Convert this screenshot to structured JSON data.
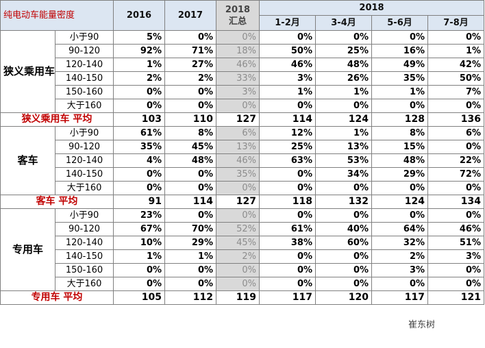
{
  "header": {
    "title": "纯电动车能量密度",
    "years": [
      "2016",
      "2017"
    ],
    "summary": [
      "2018",
      "汇总"
    ],
    "period_year": "2018",
    "periods": [
      "1-2月",
      "3-4月",
      "5-6月",
      "7-8月"
    ]
  },
  "groups": [
    {
      "name": "狭义乘用车",
      "rows": [
        {
          "label": "小于90",
          "values": [
            "5%",
            "0%",
            "0%",
            "0%",
            "0%",
            "0%",
            "0%"
          ]
        },
        {
          "label": "90-120",
          "values": [
            "92%",
            "71%",
            "18%",
            "50%",
            "25%",
            "16%",
            "1%"
          ]
        },
        {
          "label": "120-140",
          "values": [
            "1%",
            "27%",
            "46%",
            "46%",
            "48%",
            "49%",
            "42%"
          ]
        },
        {
          "label": "140-150",
          "values": [
            "2%",
            "2%",
            "33%",
            "3%",
            "26%",
            "35%",
            "50%"
          ]
        },
        {
          "label": "150-160",
          "values": [
            "0%",
            "0%",
            "3%",
            "1%",
            "1%",
            "1%",
            "7%"
          ]
        },
        {
          "label": "大于160",
          "values": [
            "0%",
            "0%",
            "0%",
            "0%",
            "0%",
            "0%",
            "0%"
          ]
        }
      ],
      "average": {
        "label": "狭义乘用车 平均",
        "values": [
          103,
          110,
          127,
          114,
          124,
          128,
          136
        ]
      }
    },
    {
      "name": "客车",
      "rows": [
        {
          "label": "小于90",
          "values": [
            "61%",
            "8%",
            "6%",
            "12%",
            "1%",
            "8%",
            "6%"
          ]
        },
        {
          "label": "90-120",
          "values": [
            "35%",
            "45%",
            "13%",
            "25%",
            "13%",
            "15%",
            "0%"
          ]
        },
        {
          "label": "120-140",
          "values": [
            "4%",
            "48%",
            "46%",
            "63%",
            "53%",
            "48%",
            "22%"
          ]
        },
        {
          "label": "140-150",
          "values": [
            "0%",
            "0%",
            "35%",
            "0%",
            "34%",
            "29%",
            "72%"
          ]
        },
        {
          "label": "大于160",
          "values": [
            "0%",
            "0%",
            "0%",
            "0%",
            "0%",
            "0%",
            "0%"
          ]
        }
      ],
      "average": {
        "label": "客车 平均",
        "values": [
          91,
          114,
          127,
          118,
          132,
          124,
          134
        ]
      }
    },
    {
      "name": "专用车",
      "rows": [
        {
          "label": "小于90",
          "values": [
            "23%",
            "0%",
            "0%",
            "0%",
            "0%",
            "0%",
            "0%"
          ]
        },
        {
          "label": "90-120",
          "values": [
            "67%",
            "70%",
            "52%",
            "61%",
            "40%",
            "64%",
            "46%"
          ]
        },
        {
          "label": "120-140",
          "values": [
            "10%",
            "29%",
            "45%",
            "38%",
            "60%",
            "32%",
            "51%"
          ]
        },
        {
          "label": "140-150",
          "values": [
            "1%",
            "1%",
            "2%",
            "0%",
            "0%",
            "2%",
            "3%"
          ]
        },
        {
          "label": "150-160",
          "values": [
            "0%",
            "0%",
            "0%",
            "0%",
            "0%",
            "3%",
            "0%"
          ]
        },
        {
          "label": "大于160",
          "values": [
            "0%",
            "0%",
            "0%",
            "0%",
            "0%",
            "0%",
            "0%"
          ]
        }
      ],
      "average": {
        "label": "专用车 平均",
        "values": [
          105,
          112,
          119,
          117,
          120,
          117,
          121
        ]
      }
    }
  ],
  "watermark": "崔东树"
}
